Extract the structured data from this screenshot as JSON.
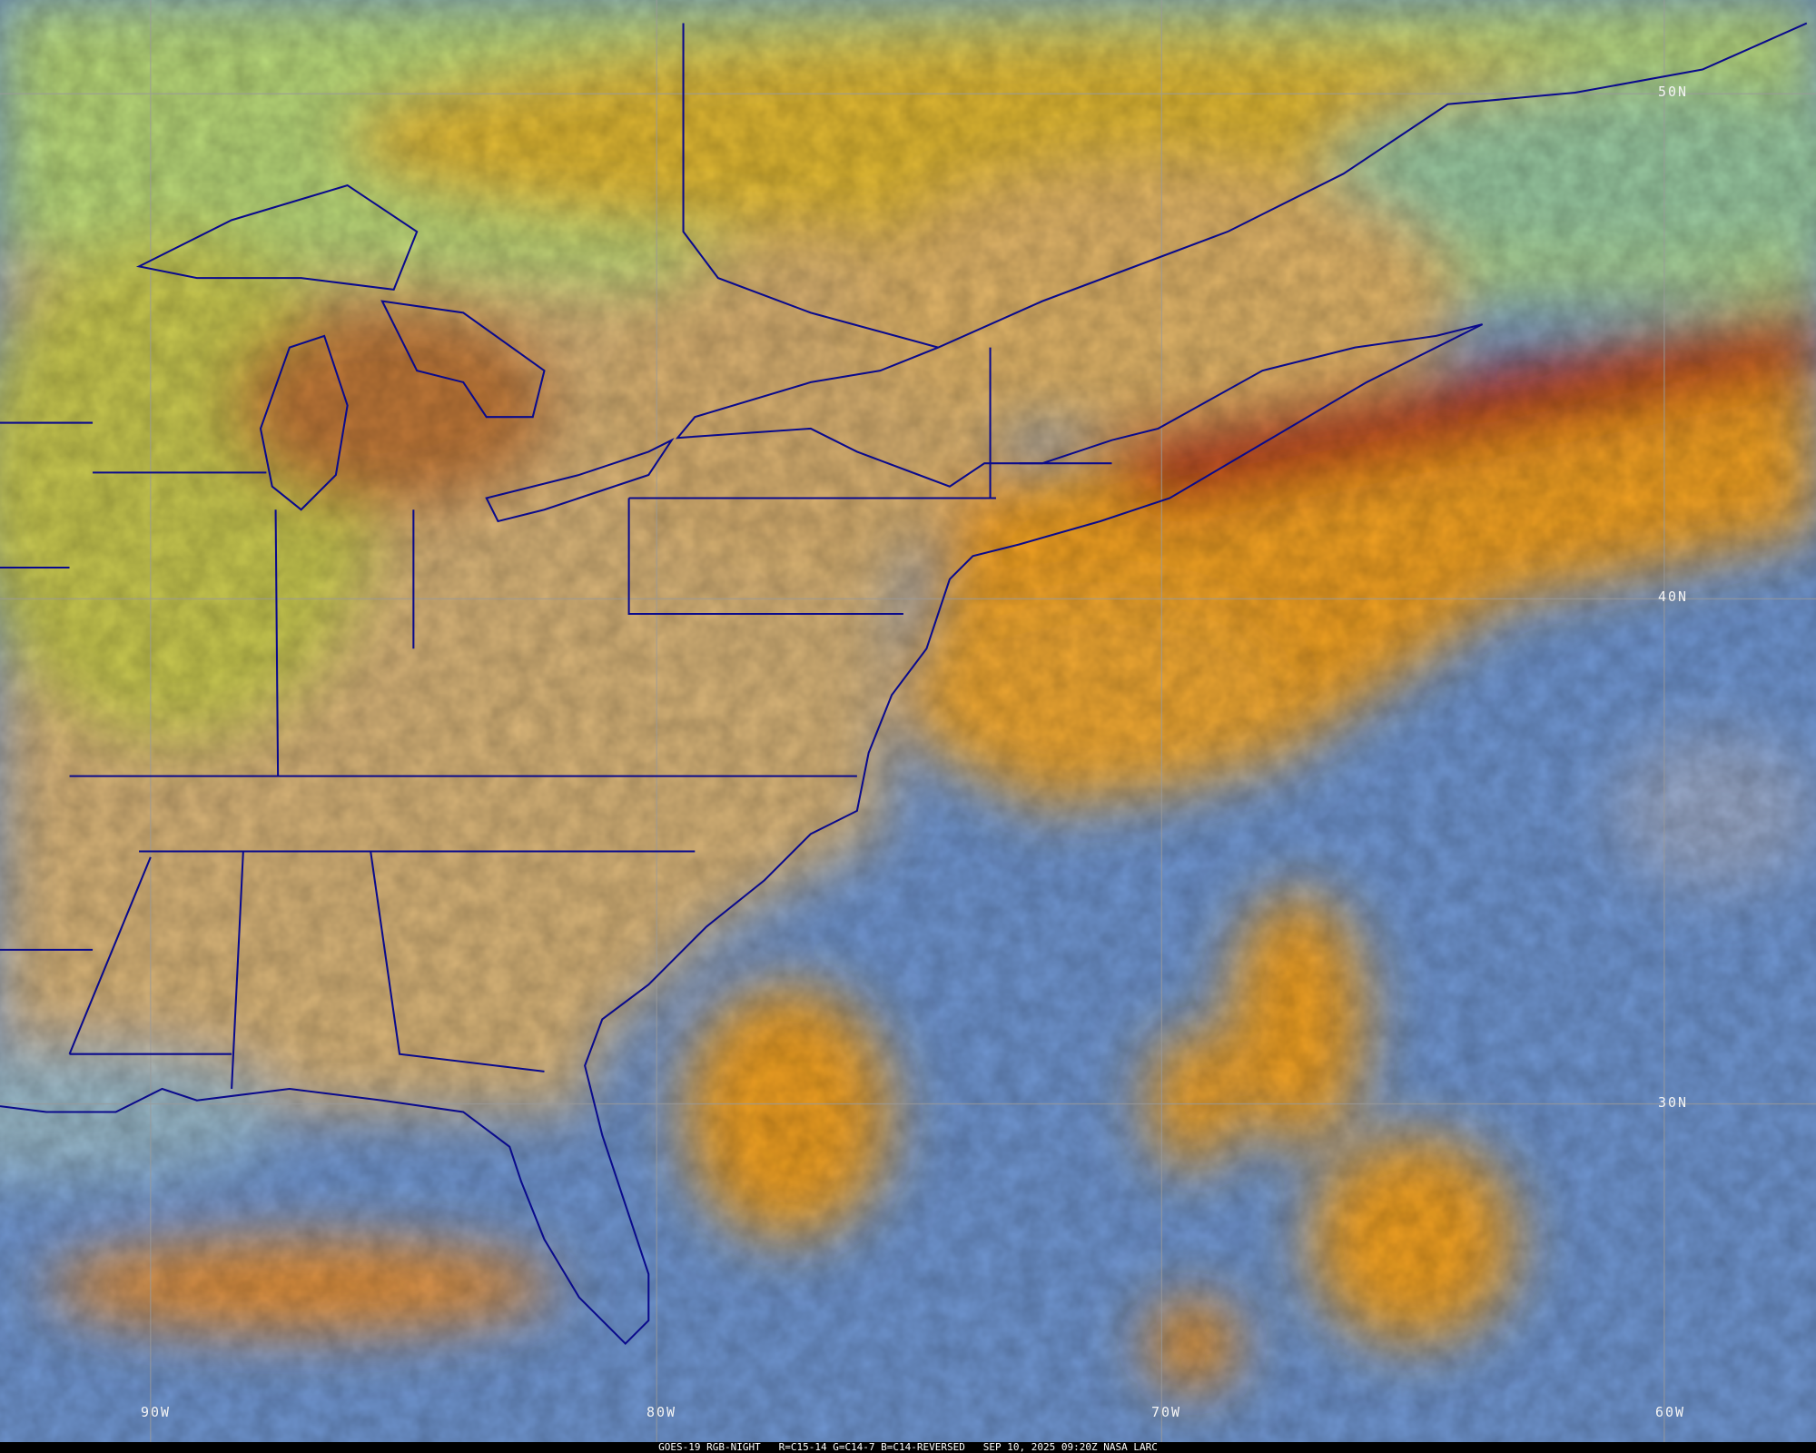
{
  "caption": {
    "satellite": "GOES-19 RGB-NIGHT",
    "channels": "R=C15-14 G=C14-7 B=C14-REVERSED",
    "timestamp": "SEP 10, 2025 09:20Z",
    "source": "NASA LARC"
  },
  "grid": {
    "lat_labels": [
      "50N",
      "40N",
      "30N"
    ],
    "lon_labels": [
      "90W",
      "80W",
      "70W",
      "60W"
    ]
  },
  "colors": {
    "boundary": "#0a0a8c",
    "grid": "#9a9a9a",
    "ocean": "#6f95d0",
    "land": "#d8b070",
    "high_cloud": "#f0a020",
    "cold_cloud": "#a01818",
    "low_cloud": "#a8d870"
  }
}
